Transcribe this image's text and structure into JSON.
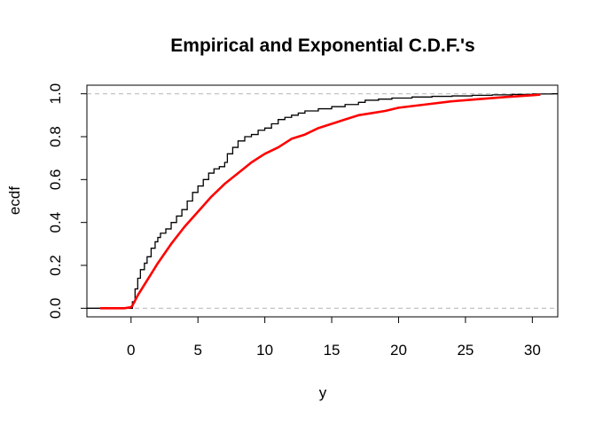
{
  "chart_data": {
    "type": "line",
    "title": "Empirical and Exponential C.D.F.'s",
    "xlabel": "y",
    "ylabel": "ecdf",
    "xlim": [
      -3.3,
      31.9
    ],
    "ylim": [
      -0.04,
      1.04
    ],
    "x_ticks": [
      0,
      5,
      10,
      15,
      20,
      25,
      30
    ],
    "x_tick_labels": [
      "0",
      "5",
      "10",
      "15",
      "20",
      "25",
      "30"
    ],
    "y_ticks": [
      0,
      0.2,
      0.4,
      0.6,
      0.8,
      1
    ],
    "y_tick_labels": [
      "0.0",
      "0.2",
      "0.4",
      "0.6",
      "0.8",
      "1.0"
    ],
    "reference_lines": [
      0,
      1
    ],
    "series": [
      {
        "kind": "step",
        "color": "#000000",
        "x": [
          0.1,
          0.3,
          0.5,
          0.7,
          1.0,
          1.2,
          1.5,
          1.8,
          2.0,
          2.2,
          2.6,
          3.0,
          3.4,
          3.8,
          4.2,
          4.6,
          5.0,
          5.4,
          5.8,
          6.2,
          6.6,
          7.0,
          7.2,
          7.6,
          8.0,
          8.5,
          9.0,
          9.5,
          10.0,
          10.5,
          11.0,
          11.5,
          12.0,
          12.5,
          13.0,
          14.0,
          15.0,
          16.0,
          17.0,
          17.5,
          18.5,
          19.5,
          21.0,
          22.5,
          24.0,
          25.5,
          27.0,
          28.5,
          30.0,
          31.5
        ],
        "y": [
          0.03,
          0.09,
          0.14,
          0.18,
          0.21,
          0.24,
          0.28,
          0.31,
          0.33,
          0.35,
          0.37,
          0.4,
          0.43,
          0.46,
          0.5,
          0.54,
          0.57,
          0.6,
          0.63,
          0.65,
          0.66,
          0.68,
          0.72,
          0.75,
          0.78,
          0.8,
          0.81,
          0.83,
          0.84,
          0.86,
          0.88,
          0.89,
          0.9,
          0.91,
          0.92,
          0.93,
          0.94,
          0.95,
          0.96,
          0.97,
          0.975,
          0.98,
          0.985,
          0.988,
          0.99,
          0.993,
          0.995,
          0.997,
          0.999,
          1.0
        ]
      },
      {
        "kind": "line",
        "color": "#ff0000",
        "x": [
          -2.3,
          -1.5,
          -0.5,
          0,
          0.1,
          0.5,
          1,
          1.5,
          2,
          3,
          4,
          5,
          6,
          7,
          8,
          9,
          10,
          11,
          12,
          13,
          14,
          15,
          16,
          17,
          18,
          19,
          20,
          22,
          24,
          26,
          28,
          30,
          30.6
        ],
        "y": [
          0,
          0,
          0,
          0.005,
          0.012,
          0.06,
          0.11,
          0.16,
          0.21,
          0.3,
          0.38,
          0.45,
          0.52,
          0.58,
          0.63,
          0.68,
          0.72,
          0.75,
          0.79,
          0.81,
          0.84,
          0.86,
          0.88,
          0.9,
          0.91,
          0.92,
          0.935,
          0.95,
          0.965,
          0.975,
          0.985,
          0.993,
          0.996
        ]
      }
    ]
  }
}
